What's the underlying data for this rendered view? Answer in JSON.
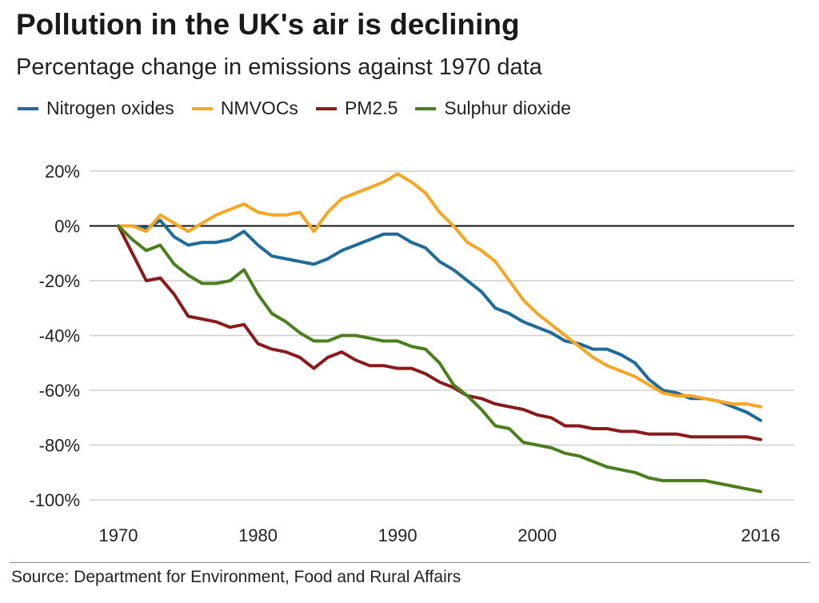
{
  "header": {
    "title": "Pollution in the UK's air is declining",
    "subtitle": "Percentage change in emissions against 1970 data"
  },
  "footer": {
    "source": "Source: Department for Environment, Food and Rural Affairs"
  },
  "chart_data": {
    "type": "line",
    "title": "Pollution in the UK's air is declining",
    "subtitle": "Percentage change in emissions against 1970 data",
    "xlabel": "",
    "ylabel": "",
    "xlim": [
      1970,
      2018
    ],
    "ylim": [
      -100,
      20
    ],
    "x_ticks": [
      1970,
      1980,
      1990,
      2000,
      2016
    ],
    "x_tick_labels": [
      "1970",
      "1980",
      "1990",
      "2000",
      "2016"
    ],
    "y_ticks": [
      20,
      0,
      -20,
      -40,
      -60,
      -80,
      -100
    ],
    "y_tick_labels": [
      "20%",
      "0%",
      "-20%",
      "-40%",
      "-60%",
      "-80%",
      "-100%"
    ],
    "grid": true,
    "zero_line": true,
    "legend_position": "top-left",
    "x": [
      1970,
      1971,
      1972,
      1973,
      1974,
      1975,
      1976,
      1977,
      1978,
      1979,
      1980,
      1981,
      1982,
      1983,
      1984,
      1985,
      1986,
      1987,
      1988,
      1989,
      1990,
      1991,
      1992,
      1993,
      1994,
      1995,
      1996,
      1997,
      1998,
      1999,
      2000,
      2001,
      2002,
      2003,
      2004,
      2005,
      2006,
      2007,
      2008,
      2009,
      2010,
      2011,
      2012,
      2013,
      2014,
      2015,
      2016
    ],
    "series": [
      {
        "name": "Nitrogen oxides",
        "color": "#1f6b9a",
        "values": [
          0,
          0,
          -1,
          2,
          -4,
          -7,
          -6,
          -6,
          -5,
          -2,
          -7,
          -11,
          -12,
          -13,
          -14,
          -12,
          -9,
          -7,
          -5,
          -3,
          -3,
          -6,
          -8,
          -13,
          -16,
          -20,
          -24,
          -30,
          -32,
          -35,
          -37,
          -39,
          -42,
          -43,
          -45,
          -45,
          -47,
          -50,
          -56,
          -60,
          -61,
          -63,
          -63,
          -64,
          -66,
          -68,
          -71
        ]
      },
      {
        "name": "NMVOCs",
        "color": "#f5a623",
        "values": [
          0,
          0,
          -2,
          4,
          1,
          -2,
          1,
          4,
          6,
          8,
          5,
          4,
          4,
          5,
          -2,
          5,
          10,
          12,
          14,
          16,
          19,
          16,
          12,
          5,
          0,
          -6,
          -9,
          -13,
          -20,
          -27,
          -32,
          -36,
          -40,
          -44,
          -48,
          -51,
          -53,
          -55,
          -58,
          -61,
          -62,
          -62,
          -63,
          -64,
          -65,
          -65,
          -66
        ]
      },
      {
        "name": "PM2.5",
        "color": "#8b1a1a",
        "values": [
          0,
          -10,
          -20,
          -19,
          -25,
          -33,
          -34,
          -35,
          -37,
          -36,
          -43,
          -45,
          -46,
          -48,
          -52,
          -48,
          -46,
          -49,
          -51,
          -51,
          -52,
          -52,
          -54,
          -57,
          -59,
          -62,
          -63,
          -65,
          -66,
          -67,
          -69,
          -70,
          -73,
          -73,
          -74,
          -74,
          -75,
          -75,
          -76,
          -76,
          -76,
          -77,
          -77,
          -77,
          -77,
          -77,
          -78
        ]
      },
      {
        "name": "Sulphur dioxide",
        "color": "#4a7f1c",
        "values": [
          0,
          -5,
          -9,
          -7,
          -14,
          -18,
          -21,
          -21,
          -20,
          -16,
          -25,
          -32,
          -35,
          -39,
          -42,
          -42,
          -40,
          -40,
          -41,
          -42,
          -42,
          -44,
          -45,
          -50,
          -58,
          -62,
          -67,
          -73,
          -74,
          -79,
          -80,
          -81,
          -83,
          -84,
          -86,
          -88,
          -89,
          -90,
          -92,
          -93,
          -93,
          -93,
          -93,
          -94,
          -95,
          -96,
          -97
        ]
      }
    ]
  }
}
